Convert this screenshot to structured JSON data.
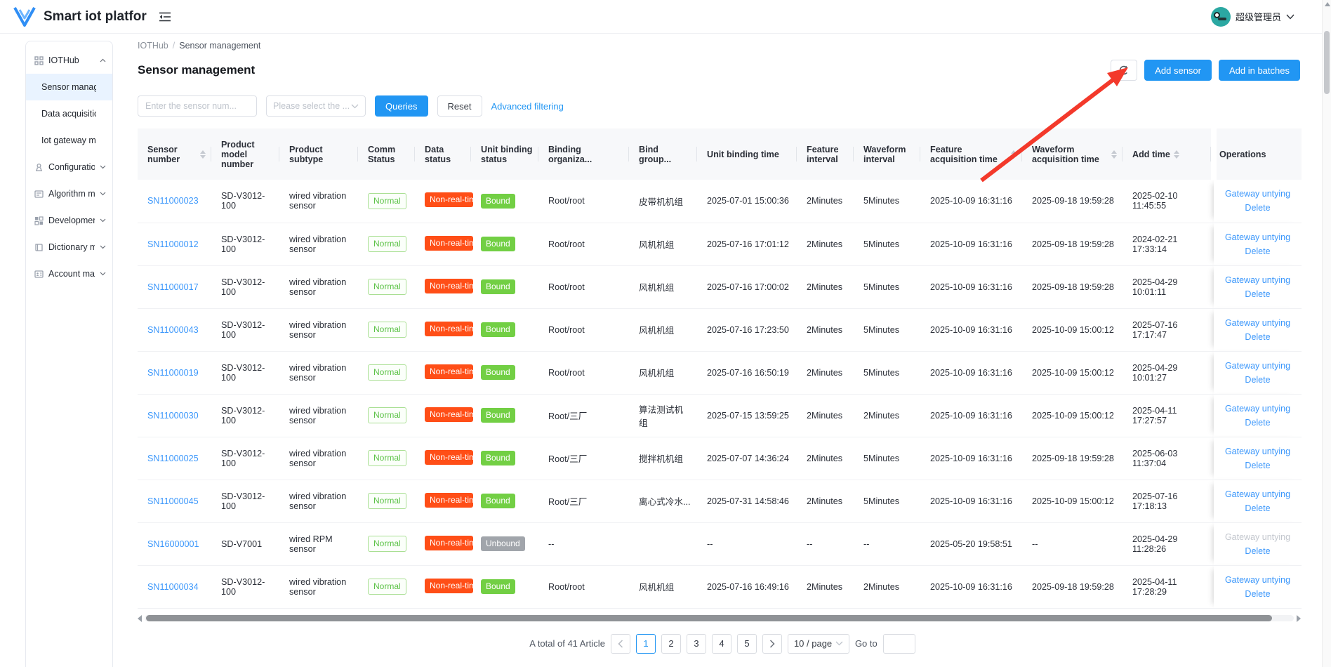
{
  "colors": {
    "primary_blue": "#2196f3",
    "link_blue": "#3b97fb",
    "badge_normal_green": "#5bc246",
    "badge_danger_orange": "#ff4e17",
    "badge_bound_green": "#72cf44",
    "badge_unbound_gray": "#a1a5ab",
    "annotation_arrow_red": "#f3392b",
    "avatar_teal": "#2ba8a2"
  },
  "header": {
    "app_title": "Smart iot platfor",
    "user_name": "超级管理员"
  },
  "sidebar": {
    "items": [
      {
        "type": "section",
        "label": "IOTHub",
        "icon": "grid-icon",
        "caret": "up"
      },
      {
        "type": "child",
        "label": "Sensor manage...",
        "active": true
      },
      {
        "type": "child",
        "label": "Data acquisition ..."
      },
      {
        "type": "child",
        "label": "Iot gateway man..."
      },
      {
        "type": "section",
        "label": "Configuratio...",
        "icon": "config-icon",
        "caret": "down"
      },
      {
        "type": "section",
        "label": "Algorithm m...",
        "icon": "algorithm-icon",
        "caret": "down"
      },
      {
        "type": "section",
        "label": "Development...",
        "icon": "development-icon",
        "caret": "down"
      },
      {
        "type": "section",
        "label": "Dictionary m...",
        "icon": "dictionary-icon",
        "caret": "down"
      },
      {
        "type": "section",
        "label": "Account man...",
        "icon": "account-icon",
        "caret": "down"
      }
    ]
  },
  "breadcrumb": {
    "root": "IOTHub",
    "separator": "/",
    "current": "Sensor management"
  },
  "page": {
    "title": "Sensor management"
  },
  "toolbar": {
    "add_sensor": "Add sensor",
    "add_in_batches": "Add in batches"
  },
  "filters": {
    "sensor_placeholder": "Enter the sensor num...",
    "select_placeholder": "Please select the ...",
    "queries": "Queries",
    "reset": "Reset",
    "advanced": "Advanced filtering"
  },
  "table": {
    "columns": [
      {
        "label": "Sensor number",
        "sortable": true
      },
      {
        "label": "Product model number",
        "sortable": false
      },
      {
        "label": "Product subtype",
        "sortable": false
      },
      {
        "label": "Comm Status",
        "sortable": false
      },
      {
        "label": "Data status",
        "sortable": false
      },
      {
        "label": "Unit binding status",
        "sortable": false
      },
      {
        "label": "Binding organiza...",
        "sortable": false
      },
      {
        "label": "Bind group...",
        "sortable": false
      },
      {
        "label": "Unit binding time",
        "sortable": false
      },
      {
        "label": "Feature interval",
        "sortable": false
      },
      {
        "label": "Waveform interval",
        "sortable": false
      },
      {
        "label": "Feature acquisition time",
        "sortable": true
      },
      {
        "label": "Waveform acquisition time",
        "sortable": true
      },
      {
        "label": "Add time",
        "sortable": true
      },
      {
        "label": "Operations",
        "sortable": false
      }
    ],
    "operations": {
      "untying": "Gateway untying",
      "delete": "Delete"
    },
    "rows": [
      {
        "sensor_number": "SN11000023",
        "model": "SD-V3012-100",
        "subtype": "wired vibration sensor",
        "comm_status": "Normal",
        "data_status": "Non-real-tim",
        "binding_status": "Bound",
        "org": "Root/root",
        "group": "皮带机机组",
        "bind_time": "2025-07-01 15:00:36",
        "feature_interval": "2Minutes",
        "waveform_interval": "5Minutes",
        "feature_acq": "2025-10-09 16:31:16",
        "waveform_acq": "2025-09-18 19:59:28",
        "add_time": "2025-02-10 11:45:55",
        "untying_disabled": false
      },
      {
        "sensor_number": "SN11000012",
        "model": "SD-V3012-100",
        "subtype": "wired vibration sensor",
        "comm_status": "Normal",
        "data_status": "Non-real-tim",
        "binding_status": "Bound",
        "org": "Root/root",
        "group": "风机机组",
        "bind_time": "2025-07-16 17:01:12",
        "feature_interval": "2Minutes",
        "waveform_interval": "5Minutes",
        "feature_acq": "2025-10-09 16:31:16",
        "waveform_acq": "2025-09-18 19:59:28",
        "add_time": "2024-02-21 17:33:14",
        "untying_disabled": false
      },
      {
        "sensor_number": "SN11000017",
        "model": "SD-V3012-100",
        "subtype": "wired vibration sensor",
        "comm_status": "Normal",
        "data_status": "Non-real-tim",
        "binding_status": "Bound",
        "org": "Root/root",
        "group": "风机机组",
        "bind_time": "2025-07-16 17:00:02",
        "feature_interval": "2Minutes",
        "waveform_interval": "5Minutes",
        "feature_acq": "2025-10-09 16:31:16",
        "waveform_acq": "2025-09-18 19:59:28",
        "add_time": "2025-04-29 10:01:11",
        "untying_disabled": false
      },
      {
        "sensor_number": "SN11000043",
        "model": "SD-V3012-100",
        "subtype": "wired vibration sensor",
        "comm_status": "Normal",
        "data_status": "Non-real-tim",
        "binding_status": "Bound",
        "org": "Root/root",
        "group": "风机机组",
        "bind_time": "2025-07-16 17:23:50",
        "feature_interval": "2Minutes",
        "waveform_interval": "5Minutes",
        "feature_acq": "2025-10-09 16:31:16",
        "waveform_acq": "2025-10-09 15:00:12",
        "add_time": "2025-07-16 17:17:47",
        "untying_disabled": false
      },
      {
        "sensor_number": "SN11000019",
        "model": "SD-V3012-100",
        "subtype": "wired vibration sensor",
        "comm_status": "Normal",
        "data_status": "Non-real-tim",
        "binding_status": "Bound",
        "org": "Root/root",
        "group": "风机机组",
        "bind_time": "2025-07-16 16:50:19",
        "feature_interval": "2Minutes",
        "waveform_interval": "5Minutes",
        "feature_acq": "2025-10-09 16:31:16",
        "waveform_acq": "2025-10-09 15:00:12",
        "add_time": "2025-04-29 10:01:27",
        "untying_disabled": false
      },
      {
        "sensor_number": "SN11000030",
        "model": "SD-V3012-100",
        "subtype": "wired vibration sensor",
        "comm_status": "Normal",
        "data_status": "Non-real-tim",
        "binding_status": "Bound",
        "org": "Root/三厂",
        "group": "算法测试机组",
        "bind_time": "2025-07-15 13:59:25",
        "feature_interval": "2Minutes",
        "waveform_interval": "2Minutes",
        "feature_acq": "2025-10-09 16:31:16",
        "waveform_acq": "2025-10-09 15:00:12",
        "add_time": "2025-04-11 17:27:57",
        "untying_disabled": false
      },
      {
        "sensor_number": "SN11000025",
        "model": "SD-V3012-100",
        "subtype": "wired vibration sensor",
        "comm_status": "Normal",
        "data_status": "Non-real-tim",
        "binding_status": "Bound",
        "org": "Root/三厂",
        "group": "搅拌机机组",
        "bind_time": "2025-07-07 14:36:24",
        "feature_interval": "2Minutes",
        "waveform_interval": "5Minutes",
        "feature_acq": "2025-10-09 16:31:16",
        "waveform_acq": "2025-09-18 19:59:28",
        "add_time": "2025-06-03 11:37:04",
        "untying_disabled": false
      },
      {
        "sensor_number": "SN11000045",
        "model": "SD-V3012-100",
        "subtype": "wired vibration sensor",
        "comm_status": "Normal",
        "data_status": "Non-real-tim",
        "binding_status": "Bound",
        "org": "Root/三厂",
        "group": "离心式冷水...",
        "bind_time": "2025-07-31 14:58:46",
        "feature_interval": "2Minutes",
        "waveform_interval": "5Minutes",
        "feature_acq": "2025-10-09 16:31:16",
        "waveform_acq": "2025-10-09 15:00:12",
        "add_time": "2025-07-16 17:18:13",
        "untying_disabled": false
      },
      {
        "sensor_number": "SN16000001",
        "model": "SD-V7001",
        "subtype": "wired RPM sensor",
        "comm_status": "Normal",
        "data_status": "Non-real-tim",
        "binding_status": "Unbound",
        "org": "--",
        "group": "",
        "bind_time": "--",
        "feature_interval": "--",
        "waveform_interval": "--",
        "feature_acq": "2025-05-20 19:58:51",
        "waveform_acq": "--",
        "add_time": "2025-04-29 11:28:26",
        "untying_disabled": true
      },
      {
        "sensor_number": "SN11000034",
        "model": "SD-V3012-100",
        "subtype": "wired vibration sensor",
        "comm_status": "Normal",
        "data_status": "Non-real-tim",
        "binding_status": "Bound",
        "org": "Root/root",
        "group": "风机机组",
        "bind_time": "2025-07-16 16:49:16",
        "feature_interval": "2Minutes",
        "waveform_interval": "2Minutes",
        "feature_acq": "2025-10-09 16:31:16",
        "waveform_acq": "2025-09-18 19:59:28",
        "add_time": "2025-04-11 17:28:29",
        "untying_disabled": false
      }
    ]
  },
  "pagination": {
    "total_text": "A total of 41 Article",
    "pages": [
      "1",
      "2",
      "3",
      "4",
      "5"
    ],
    "active_page": "1",
    "page_size": "10 / page",
    "goto_label": "Go to"
  }
}
